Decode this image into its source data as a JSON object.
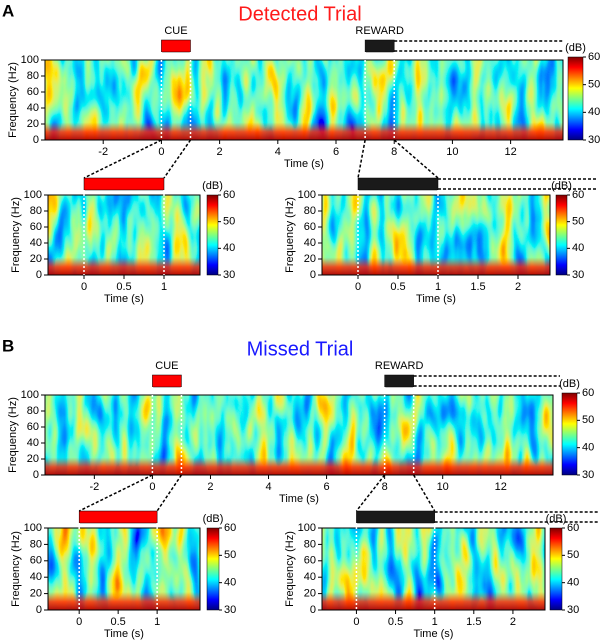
{
  "chart_data": [
    {
      "type": "heatmap",
      "panel_letter": "A",
      "title": "Detected Trial",
      "title_color": "#ff1a1a",
      "x_label": "Time (s)",
      "y_label": "Frequency (Hz)",
      "xlim": [
        -4,
        13.8
      ],
      "xticks": [
        -2,
        0,
        2,
        4,
        6,
        8,
        10,
        12
      ],
      "ylim": [
        0,
        100
      ],
      "yticks": [
        0,
        20,
        40,
        60,
        80,
        100
      ],
      "colorbar": {
        "label": "(dB)",
        "clim": [
          30,
          60
        ],
        "ticks": [
          30,
          40,
          50,
          60
        ]
      },
      "bars": [
        {
          "label": "CUE",
          "color": "#ff0000",
          "x": [
            0,
            1
          ]
        },
        {
          "label": "REWARD",
          "color": "#1a1a1a",
          "x": [
            7,
            8
          ]
        }
      ]
    },
    {
      "type": "heatmap",
      "x_label": "Time (s)",
      "y_label": "Frequency (Hz)",
      "xlim": [
        -0.45,
        1.45
      ],
      "xticks": [
        0,
        0.5,
        1
      ],
      "ylim": [
        0,
        100
      ],
      "yticks": [
        0,
        20,
        40,
        60,
        80,
        100
      ],
      "colorbar": {
        "label": "(dB)",
        "clim": [
          30,
          60
        ],
        "ticks": [
          30,
          40,
          50,
          60
        ]
      },
      "bars": [
        {
          "color": "#ff0000",
          "x": [
            0,
            1
          ]
        }
      ]
    },
    {
      "type": "heatmap",
      "x_label": "Time (s)",
      "y_label": "Frequency (Hz)",
      "xlim": [
        -0.45,
        2.4
      ],
      "xticks": [
        0,
        0.5,
        1,
        1.5,
        2
      ],
      "ylim": [
        0,
        100
      ],
      "yticks": [
        0,
        20,
        40,
        60,
        80,
        100
      ],
      "colorbar": {
        "label": "(dB)",
        "clim": [
          30,
          60
        ],
        "ticks": [
          30,
          40,
          50,
          60
        ]
      },
      "bars": [
        {
          "color": "#1a1a1a",
          "x": [
            0,
            1
          ]
        }
      ]
    },
    {
      "type": "heatmap",
      "panel_letter": "B",
      "title": "Missed Trial",
      "title_color": "#1a1aff",
      "x_label": "Time (s)",
      "y_label": "Frequency (Hz)",
      "xlim": [
        -3.7,
        13.8
      ],
      "xticks": [
        -2,
        0,
        2,
        4,
        6,
        8,
        10,
        12
      ],
      "ylim": [
        0,
        100
      ],
      "yticks": [
        0,
        20,
        40,
        60,
        80,
        100
      ],
      "colorbar": {
        "label": "(dB)",
        "clim": [
          30,
          60
        ],
        "ticks": [
          30,
          40,
          50,
          60
        ]
      },
      "bars": [
        {
          "label": "CUE",
          "color": "#ff0000",
          "x": [
            0,
            1
          ]
        },
        {
          "label": "REWARD",
          "color": "#1a1a1a",
          "x": [
            8,
            9
          ]
        }
      ]
    },
    {
      "type": "heatmap",
      "x_label": "Time (s)",
      "y_label": "Frequency (Hz)",
      "xlim": [
        -0.4,
        1.55
      ],
      "xticks": [
        0,
        0.5,
        1
      ],
      "ylim": [
        0,
        100
      ],
      "yticks": [
        0,
        20,
        40,
        60,
        80,
        100
      ],
      "colorbar": {
        "label": "(dB)",
        "clim": [
          30,
          60
        ],
        "ticks": [
          30,
          40,
          50,
          60
        ]
      },
      "bars": [
        {
          "color": "#ff0000",
          "x": [
            0,
            1
          ]
        }
      ]
    },
    {
      "type": "heatmap",
      "x_label": "Time (s)",
      "y_label": "Frequency (Hz)",
      "xlim": [
        -0.44,
        2.41
      ],
      "xticks": [
        0,
        0.5,
        1,
        1.5,
        2
      ],
      "ylim": [
        0,
        100
      ],
      "yticks": [
        0,
        20,
        40,
        60,
        80,
        100
      ],
      "colorbar": {
        "label": "(dB)",
        "clim": [
          30,
          60
        ],
        "ticks": [
          30,
          40,
          50,
          60
        ]
      },
      "bars": [
        {
          "color": "#1a1a1a",
          "x": [
            0,
            1
          ]
        }
      ]
    }
  ]
}
